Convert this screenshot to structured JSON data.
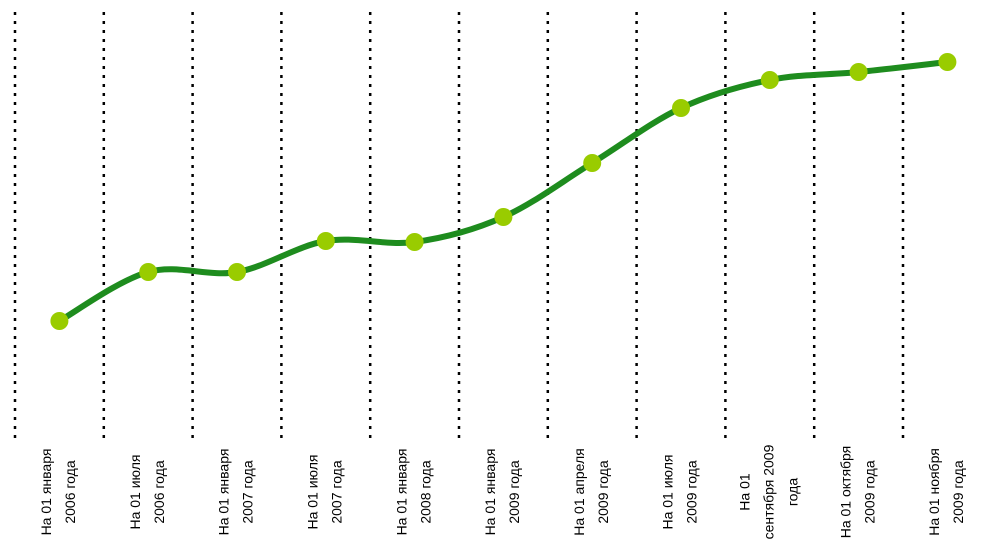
{
  "chart_data": {
    "type": "line",
    "categories": [
      [
        "На 01 января",
        "2006 года"
      ],
      [
        "На 01 июля",
        "2006 года"
      ],
      [
        "На 01 января",
        "2007 года"
      ],
      [
        "На 01 июля",
        "2007 года"
      ],
      [
        "На 01 января",
        "2008 года"
      ],
      [
        "На 01 января",
        "2009 года"
      ],
      [
        "На 01 апреля",
        "2009 года"
      ],
      [
        "На 01 июля",
        "2009 года"
      ],
      [
        "На 01",
        "сентября 2009",
        "года"
      ],
      [
        "На 01 октября",
        "2009 года"
      ],
      [
        "На 01 ноября",
        "2009 года"
      ]
    ],
    "values": [
      99,
      148,
      148,
      179,
      178,
      203,
      257,
      312,
      340,
      348,
      358
    ],
    "ylim": [
      0,
      420
    ],
    "color": "#1e8c1e",
    "marker_color": "#99cc00",
    "grid": true
  }
}
